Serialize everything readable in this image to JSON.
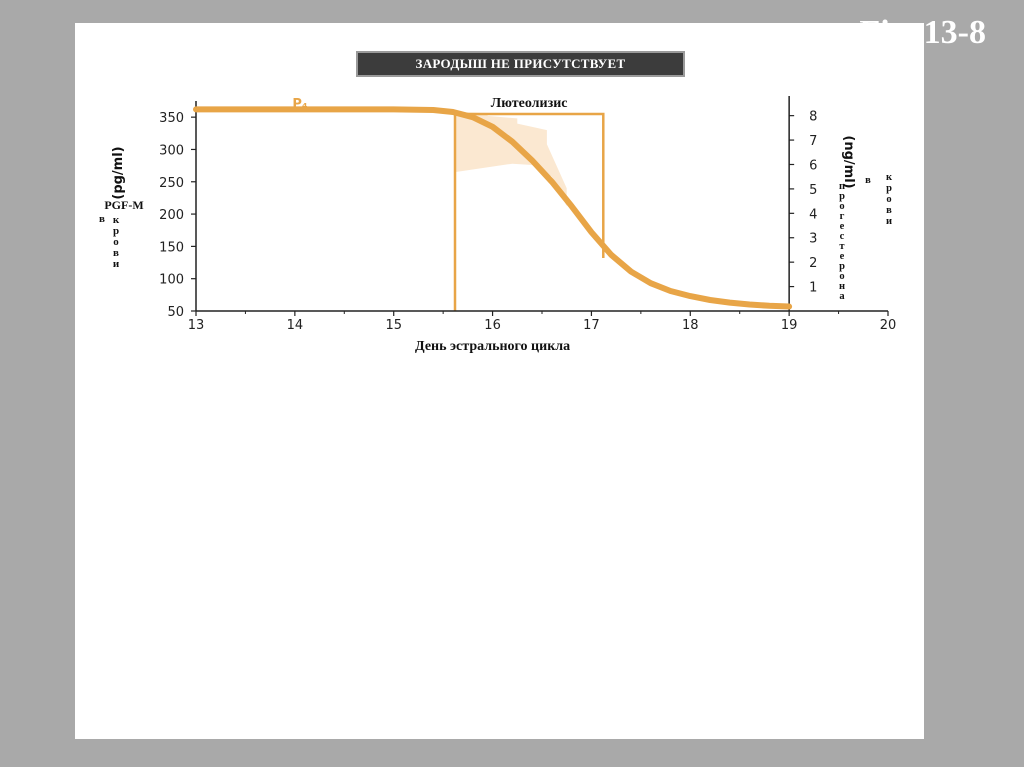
{
  "fig_label": "Fig. 13-8",
  "banner": "ЗАРОДЫШ НЕ ПРИСУТСТВУЕТ",
  "chart_data": {
    "type": "line",
    "title": "ЗАРОДЫШ НЕ ПРИСУТСТВУЕТ",
    "xlabel": "День эстрального цикла",
    "x_ticks": [
      13,
      14,
      15,
      16,
      17,
      18,
      19,
      20
    ],
    "xlim": [
      13,
      20
    ],
    "left_axis": {
      "unit": "(pg/ml)",
      "label_top": "PGF-M",
      "label_rest": [
        "в",
        "к",
        "р",
        "о",
        "в",
        "и"
      ],
      "ticks": [
        50,
        100,
        150,
        200,
        250,
        300,
        350
      ],
      "ylim": [
        50,
        375
      ]
    },
    "right_axis": {
      "unit": "(ng/ml)",
      "label_letters": [
        "п",
        "р",
        "о",
        "г",
        "е",
        "с",
        "т",
        "е",
        "р",
        "о",
        "н",
        "а"
      ],
      "label_extra_1": "в",
      "label_extra_2": [
        "к",
        "р",
        "о",
        "в",
        "и"
      ],
      "ticks": [
        1,
        2,
        3,
        4,
        5,
        6,
        7,
        8
      ],
      "ylim": [
        0,
        8.6
      ]
    },
    "annotations": [
      {
        "text": "Лютеолизис",
        "x_start": 15.62,
        "x_end": 17.12
      }
    ],
    "series": [
      {
        "name": "P₄",
        "axis": "left",
        "color": "#e8a547",
        "x": [
          13,
          14,
          15,
          15.4,
          15.6,
          15.8,
          16.0,
          16.2,
          16.4,
          16.6,
          16.8,
          17.0,
          17.2,
          17.4,
          17.6,
          17.8,
          18.0,
          18.2,
          18.4,
          18.6,
          18.8,
          19.0
        ],
        "y": [
          362,
          362,
          362,
          361,
          358,
          350,
          335,
          312,
          283,
          250,
          212,
          172,
          137,
          111,
          93,
          81,
          73,
          67,
          63,
          60,
          58,
          57
        ]
      }
    ],
    "shaded_region": {
      "color": "#fbe8d1",
      "x": [
        15.62,
        15.62,
        15.95,
        15.95,
        16.25,
        16.25,
        16.55,
        16.55,
        16.75,
        16.75,
        16.6,
        16.4,
        16.2
      ],
      "y": [
        265,
        358,
        356,
        352,
        348,
        340,
        330,
        308,
        240,
        212,
        258,
        276,
        278
      ]
    },
    "grid": false
  }
}
